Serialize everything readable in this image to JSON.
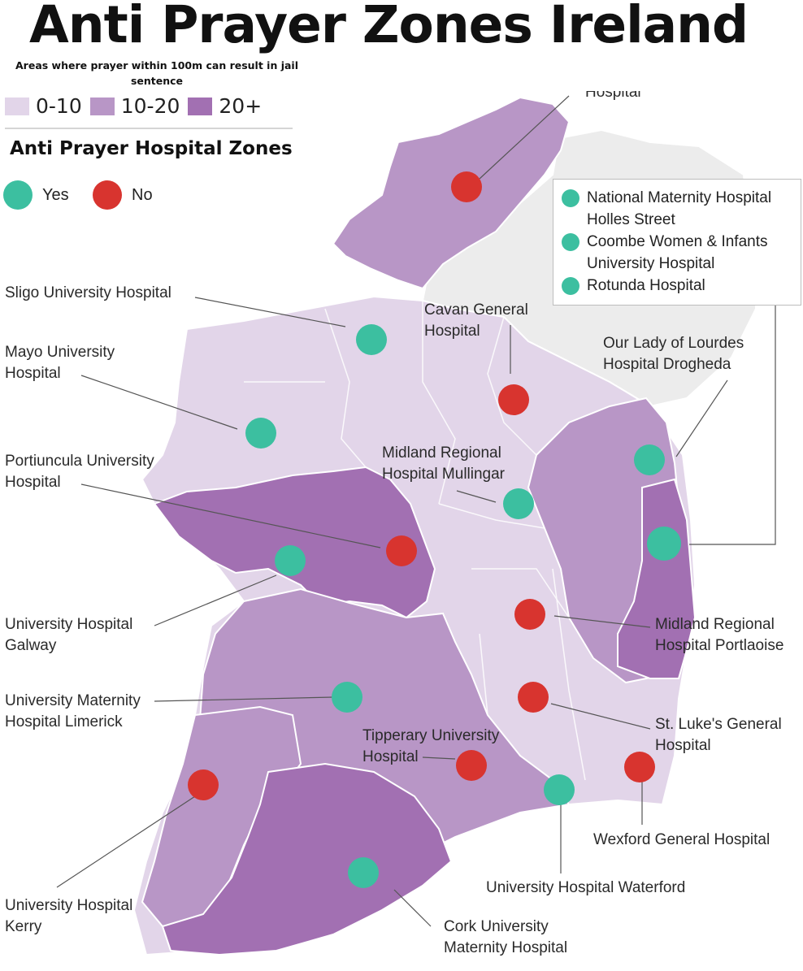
{
  "title": "Anti Prayer Zones Ireland",
  "subtitle": "Areas where prayer within 100m can result in jail sentence",
  "legend": {
    "bins": [
      {
        "label": "0-10",
        "color": "#e2d5e9"
      },
      {
        "label": "10-20",
        "color": "#b896c6"
      },
      {
        "label": "20+",
        "color": "#a270b2"
      }
    ]
  },
  "hospital_legend": {
    "title": "Anti Prayer Hospital Zones",
    "yes": {
      "label": "Yes",
      "color": "#3cbfa0"
    },
    "no": {
      "label": "No",
      "color": "#d8342f"
    }
  },
  "dublin_box": [
    "National Maternity Hospital Holles Street",
    "Coombe Women & Infants University Hospital",
    "Rotunda Hospital"
  ],
  "hospitals": [
    {
      "name": "Sligo University Hospital",
      "zone": "Yes"
    },
    {
      "name": "Mayo University Hospital",
      "zone": "Yes"
    },
    {
      "name": "Portiuncula University Hospital",
      "zone": "No"
    },
    {
      "name": "University Hospital Galway",
      "zone": "Yes"
    },
    {
      "name": "University Maternity Hospital Limerick",
      "zone": "Yes"
    },
    {
      "name": "University Hospital Kerry",
      "zone": "No"
    },
    {
      "name": "Cork University Maternity Hospital",
      "zone": "Yes"
    },
    {
      "name": "Tipperary University Hospital",
      "zone": "No"
    },
    {
      "name": "University Hospital Waterford",
      "zone": "Yes"
    },
    {
      "name": "Wexford General Hospital",
      "zone": "No"
    },
    {
      "name": "St. Luke's General Hospital",
      "zone": "No"
    },
    {
      "name": "Midland Regional Hospital Portlaoise",
      "zone": "No"
    },
    {
      "name": "Midland Regional Hospital Mullingar",
      "zone": "Yes"
    },
    {
      "name": "Cavan General Hospital",
      "zone": "No"
    },
    {
      "name": "Our Lady of Lourdes Hospital Drogheda",
      "zone": "Yes"
    },
    {
      "name": "Letterkenny University Hospital",
      "zone": "No"
    },
    {
      "name": "Dublin maternity hospitals",
      "zone": "Yes"
    }
  ],
  "labels": {
    "sligo": [
      "Sligo University Hospital"
    ],
    "mayo": [
      "Mayo University",
      "Hospital"
    ],
    "portiuncula": [
      "Portiuncula University",
      "Hospital"
    ],
    "galway": [
      "University Hospital",
      "Galway"
    ],
    "limerick": [
      "University Maternity",
      "Hospital Limerick"
    ],
    "kerry": [
      "University Hospital",
      "Kerry"
    ],
    "cork": [
      "Cork University",
      "Maternity Hospital"
    ],
    "tipperary": [
      "Tipperary University",
      "Hospital"
    ],
    "waterford": [
      "University Hospital Waterford"
    ],
    "wexford": [
      "Wexford General Hospital"
    ],
    "stlukes": [
      "St. Luke's General",
      "Hospital"
    ],
    "portlaoise": [
      "Midland Regional",
      "Hospital Portlaoise"
    ],
    "mullingar": [
      "Midland Regional",
      "Hospital Mullingar"
    ],
    "cavan": [
      "Cavan General",
      "Hospital"
    ],
    "drogheda": [
      "Our Lady of Lourdes",
      "Hospital Drogheda"
    ],
    "letterkenny_partial": "Hospital"
  }
}
